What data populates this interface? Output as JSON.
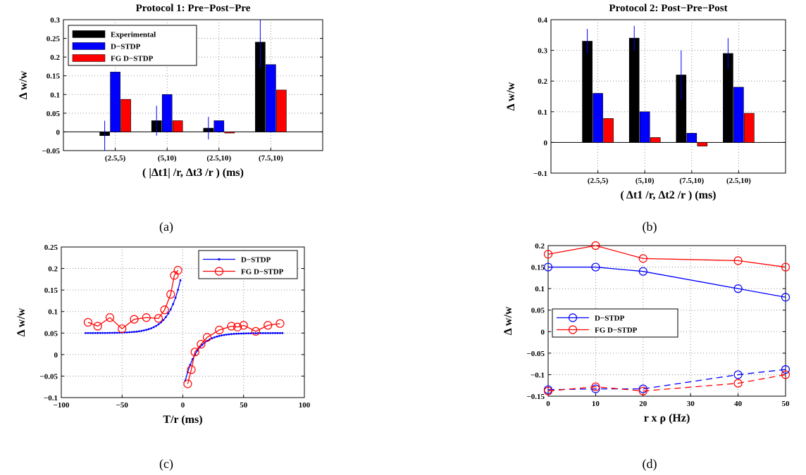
{
  "chart_data": [
    {
      "id": "a",
      "type": "bar",
      "title": "Protocol 1: Pre−Post−Pre",
      "xlabel": "( |Δt1| /r, Δt3 /r ) (ms)",
      "ylabel": "Δ w/w",
      "caption": "(a)",
      "ylim": [
        -0.05,
        0.3
      ],
      "yticks": [
        "−0.05",
        "0",
        "0.05",
        "0.1",
        "0.15",
        "0.2",
        "0.25",
        "0.3"
      ],
      "yticks_v": [
        -0.05,
        0,
        0.05,
        0.1,
        0.15,
        0.2,
        0.25,
        0.3
      ],
      "categories": [
        "(2.5,5)",
        "(5,10)",
        "(2.5,10)",
        "(7.5,10)"
      ],
      "grid": true,
      "legend_position": "top-left",
      "series": [
        {
          "name": "Experimental",
          "color": "#000000",
          "values": [
            -0.01,
            0.03,
            0.01,
            0.24
          ],
          "err": [
            0.04,
            0.04,
            0.03,
            0.07
          ]
        },
        {
          "name": "D−STDP",
          "color": "#0000ff",
          "values": [
            0.16,
            0.1,
            0.03,
            0.18
          ]
        },
        {
          "name": "FG D−STDP",
          "color": "#ff0000",
          "values": [
            0.087,
            0.03,
            -0.003,
            0.112
          ]
        }
      ]
    },
    {
      "id": "b",
      "type": "bar",
      "title": "Protocol 2: Post−Pre−Post",
      "xlabel": "( Δt1 /r, Δt2 /r ) (ms)",
      "ylabel": "Δ w/w",
      "caption": "(b)",
      "ylim": [
        -0.1,
        0.4
      ],
      "yticks": [
        "−0.1",
        "0",
        "0.1",
        "0.2",
        "0.3",
        "0.4"
      ],
      "yticks_v": [
        -0.1,
        0,
        0.1,
        0.2,
        0.3,
        0.4
      ],
      "categories": [
        "(2.5,5)",
        "(5,10)",
        "(7.5,10)",
        "(2.5,10)"
      ],
      "grid": true,
      "series": [
        {
          "name": "Experimental",
          "color": "#000000",
          "values": [
            0.33,
            0.34,
            0.22,
            0.29
          ],
          "err": [
            0.04,
            0.04,
            0.08,
            0.05
          ]
        },
        {
          "name": "D−STDP",
          "color": "#0000ff",
          "values": [
            0.16,
            0.1,
            0.03,
            0.18
          ]
        },
        {
          "name": "FG D−STDP",
          "color": "#ff0000",
          "values": [
            0.078,
            0.016,
            -0.012,
            0.095
          ]
        }
      ]
    },
    {
      "id": "c",
      "type": "line",
      "xlabel": "T/r (ms)",
      "ylabel": "Δ w/w",
      "caption": "(c)",
      "xlim": [
        -100,
        100
      ],
      "ylim": [
        -0.1,
        0.25
      ],
      "xticks": [
        "−100",
        "−50",
        "0",
        "50",
        "100"
      ],
      "xticks_v": [
        -100,
        -50,
        0,
        50,
        100
      ],
      "yticks": [
        "−0.1",
        "−0.05",
        "0",
        "0.05",
        "0.1",
        "0.15",
        "0.2",
        "0.25"
      ],
      "yticks_v": [
        -0.1,
        -0.05,
        0,
        0.05,
        0.1,
        0.15,
        0.2,
        0.25
      ],
      "grid": true,
      "legend_position": "top-right",
      "series": [
        {
          "name": "D−STDP",
          "color": "#0000ff",
          "marker": "dot",
          "model": {
            "base": 0.05,
            "amp_neg": 0.15,
            "amp_pos": -0.135,
            "tau": 10,
            "xmin_neg": -80,
            "xmax_neg": -2,
            "xmin_pos": 2,
            "xmax_pos": 82
          }
        },
        {
          "name": "FG D−STDP",
          "color": "#ff0000",
          "marker": "circle",
          "x": [
            -78,
            -70,
            -60,
            -50,
            -40,
            -30,
            -20,
            -15,
            -10,
            -7,
            -4,
            4,
            7,
            10,
            15,
            20,
            30,
            40,
            45,
            50,
            60,
            70,
            80
          ],
          "y": [
            0.075,
            0.066,
            0.086,
            0.06,
            0.082,
            0.086,
            0.084,
            0.104,
            0.14,
            0.184,
            0.196,
            -0.068,
            -0.035,
            0.006,
            0.024,
            0.04,
            0.057,
            0.066,
            0.064,
            0.068,
            0.054,
            0.068,
            0.072
          ],
          "split_after": 10
        }
      ]
    },
    {
      "id": "d",
      "type": "line",
      "xlabel": "r x ρ (Hz)",
      "ylabel": "Δ w/w",
      "caption": "(d)",
      "xlim": [
        0,
        50
      ],
      "ylim": [
        -0.15,
        0.2
      ],
      "xticks": [
        "0",
        "10",
        "20",
        "30",
        "40",
        "50"
      ],
      "xticks_v": [
        0,
        10,
        20,
        30,
        40,
        50
      ],
      "yticks": [
        "−0.15",
        "−0.1",
        "−0.05",
        "0",
        "0.05",
        "0.1",
        "0.15",
        "0.2"
      ],
      "yticks_v": [
        -0.15,
        -0.1,
        -0.05,
        0,
        0.05,
        0.1,
        0.15,
        0.2
      ],
      "grid": true,
      "legend_position": "center-left",
      "x": [
        0,
        10,
        20,
        40,
        50
      ],
      "series": [
        {
          "name": "D−STDP",
          "color": "#0000ff",
          "marker": "circle",
          "style": "solid",
          "y": [
            0.15,
            0.15,
            0.14,
            0.1,
            0.08
          ]
        },
        {
          "name": "FG D−STDP",
          "color": "#ff0000",
          "marker": "circle",
          "style": "solid",
          "y": [
            0.18,
            0.2,
            0.17,
            0.165,
            0.15
          ]
        },
        {
          "color": "#0000ff",
          "marker": "circle",
          "style": "dashed",
          "y": [
            -0.135,
            -0.133,
            -0.133,
            -0.1,
            -0.088
          ]
        },
        {
          "color": "#ff0000",
          "marker": "circle",
          "style": "dashed",
          "y": [
            -0.138,
            -0.128,
            -0.138,
            -0.12,
            -0.1
          ]
        }
      ]
    }
  ]
}
